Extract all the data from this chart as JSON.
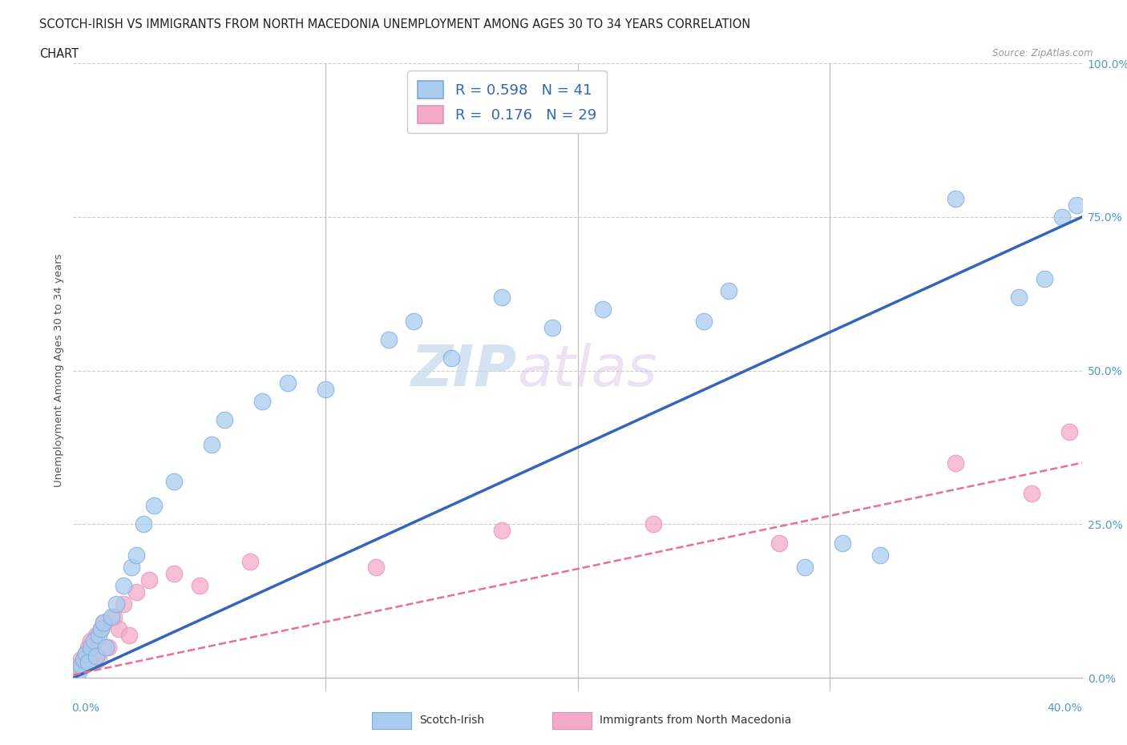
{
  "title_line1": "SCOTCH-IRISH VS IMMIGRANTS FROM NORTH MACEDONIA UNEMPLOYMENT AMONG AGES 30 TO 34 YEARS CORRELATION",
  "title_line2": "CHART",
  "source": "Source: ZipAtlas.com",
  "ylabel": "Unemployment Among Ages 30 to 34 years",
  "ytick_vals": [
    0.0,
    25.0,
    50.0,
    75.0,
    100.0
  ],
  "xlim": [
    0.0,
    40.0
  ],
  "ylim": [
    0.0,
    100.0
  ],
  "watermark_zip": "ZIP",
  "watermark_atlas": "atlas",
  "legend_blue_r": "0.598",
  "legend_blue_n": "41",
  "legend_pink_r": "0.176",
  "legend_pink_n": "29",
  "blue_color": "#aaccf0",
  "pink_color": "#f5aac8",
  "blue_line_color": "#3366bb",
  "pink_line_color": "#e87090",
  "scotch_irish_x": [
    0.2,
    0.3,
    0.4,
    0.5,
    0.6,
    0.7,
    0.8,
    0.9,
    1.0,
    1.1,
    1.2,
    1.3,
    1.5,
    1.7,
    2.0,
    2.3,
    2.5,
    2.8,
    3.2,
    4.0,
    5.5,
    6.0,
    7.5,
    8.5,
    10.0,
    12.5,
    13.5,
    15.0,
    17.0,
    19.0,
    21.0,
    25.0,
    26.0,
    29.0,
    30.5,
    32.0,
    35.0,
    37.5,
    38.5,
    39.2,
    39.8
  ],
  "scotch_irish_y": [
    1.0,
    2.0,
    3.0,
    4.0,
    2.5,
    5.0,
    6.0,
    3.5,
    7.0,
    8.0,
    9.0,
    5.0,
    10.0,
    12.0,
    15.0,
    18.0,
    20.0,
    25.0,
    28.0,
    32.0,
    38.0,
    42.0,
    45.0,
    48.0,
    47.0,
    55.0,
    58.0,
    52.0,
    62.0,
    57.0,
    60.0,
    58.0,
    63.0,
    18.0,
    22.0,
    20.0,
    78.0,
    62.0,
    65.0,
    75.0,
    77.0
  ],
  "north_macedonia_x": [
    0.1,
    0.2,
    0.3,
    0.4,
    0.5,
    0.6,
    0.7,
    0.8,
    0.9,
    1.0,
    1.1,
    1.2,
    1.4,
    1.6,
    1.8,
    2.0,
    2.2,
    2.5,
    3.0,
    4.0,
    5.0,
    7.0,
    12.0,
    17.0,
    23.0,
    28.0,
    35.0,
    38.0,
    39.5
  ],
  "north_macedonia_y": [
    1.0,
    2.0,
    3.0,
    2.0,
    4.0,
    5.0,
    6.0,
    4.0,
    7.0,
    3.0,
    8.0,
    9.0,
    5.0,
    10.0,
    8.0,
    12.0,
    7.0,
    14.0,
    16.0,
    17.0,
    15.0,
    19.0,
    18.0,
    24.0,
    25.0,
    22.0,
    35.0,
    30.0,
    40.0
  ]
}
